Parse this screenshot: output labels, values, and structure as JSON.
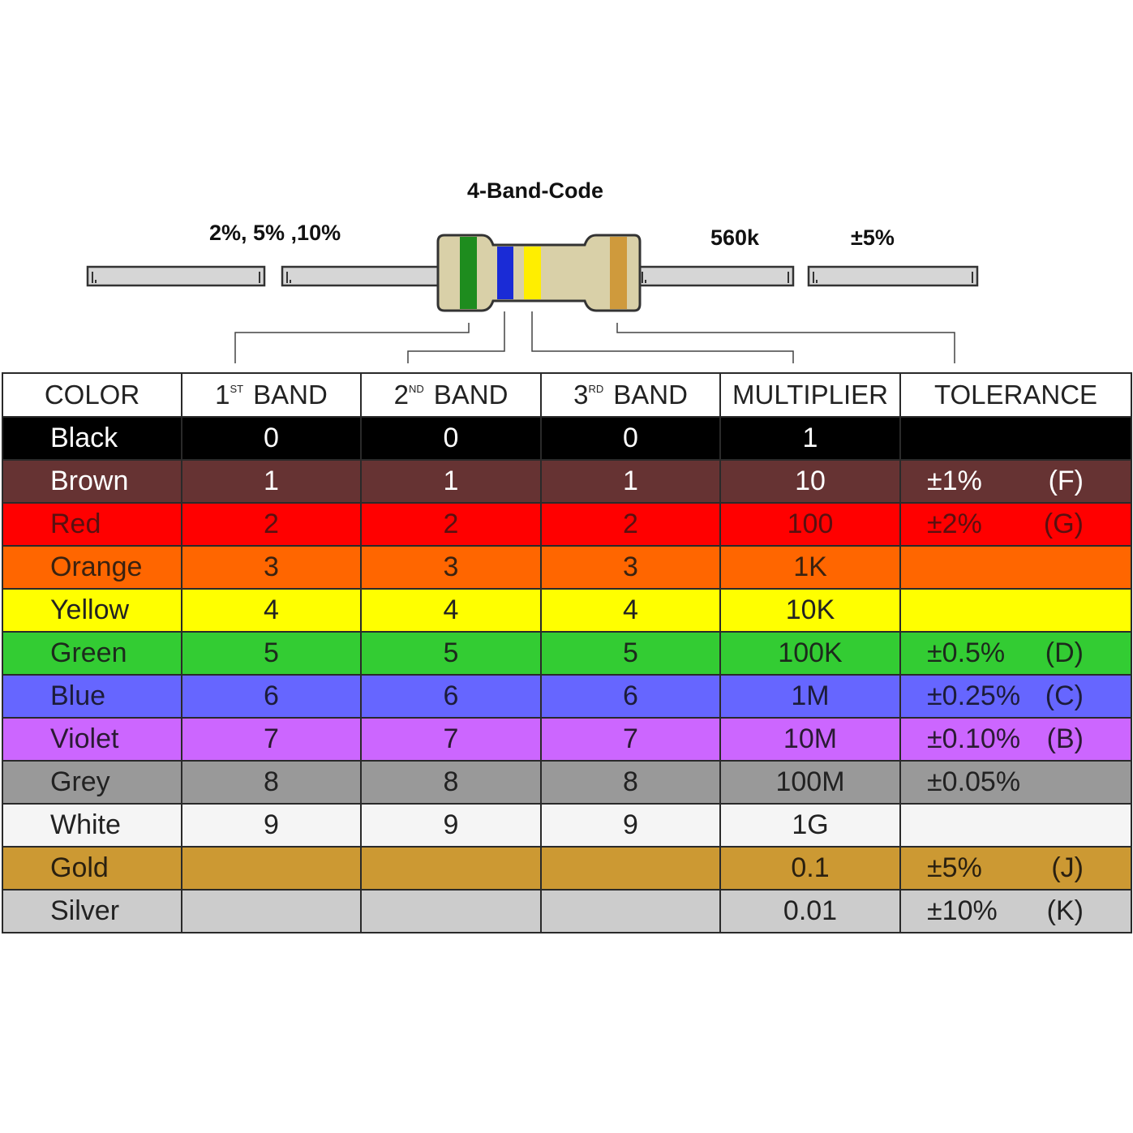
{
  "diagram": {
    "title": "4-Band-Code",
    "tolerance_label": "2%, 5% ,10%",
    "value_label": "560k",
    "tolerance_example": "±5%",
    "resistor_bands": [
      "#1e8c1e",
      "#1a2bd6",
      "#ffee00",
      "#cf9a3c"
    ],
    "resistor_body_color": "#d9d0a8",
    "lead_color": "#d6d6d6"
  },
  "table": {
    "headers": {
      "color": "COLOR",
      "band1_num": "1",
      "band1_sup": "ST",
      "band1_word": "BAND",
      "band2_num": "2",
      "band2_sup": "ND",
      "band2_word": "BAND",
      "band3_num": "3",
      "band3_sup": "RD",
      "band3_word": "BAND",
      "multiplier": "MULTIPLIER",
      "tolerance": "TOLERANCE"
    },
    "rows": [
      {
        "name": "Black",
        "b1": "0",
        "b2": "0",
        "b3": "0",
        "mult": "1",
        "tol": "",
        "code": "",
        "bg": "#000000",
        "fg": "#ffffff"
      },
      {
        "name": "Brown",
        "b1": "1",
        "b2": "1",
        "b3": "1",
        "mult": "10",
        "tol": "±1%",
        "code": "(F)",
        "bg": "#663333",
        "fg": "#ffffff"
      },
      {
        "name": "Red",
        "b1": "2",
        "b2": "2",
        "b3": "2",
        "mult": "100",
        "tol": "±2%",
        "code": "(G)",
        "bg": "#ff0000",
        "fg": "#5a1010"
      },
      {
        "name": "Orange",
        "b1": "3",
        "b2": "3",
        "b3": "3",
        "mult": "1K",
        "tol": "",
        "code": "",
        "bg": "#ff6600",
        "fg": "#3a2210"
      },
      {
        "name": "Yellow",
        "b1": "4",
        "b2": "4",
        "b3": "4",
        "mult": "10K",
        "tol": "",
        "code": "",
        "bg": "#ffff00",
        "fg": "#222222"
      },
      {
        "name": "Green",
        "b1": "5",
        "b2": "5",
        "b3": "5",
        "mult": "100K",
        "tol": "±0.5%",
        "code": "(D)",
        "bg": "#33cc33",
        "fg": "#1c2a1c"
      },
      {
        "name": "Blue",
        "b1": "6",
        "b2": "6",
        "b3": "6",
        "mult": "1M",
        "tol": "±0.25%",
        "code": "(C)",
        "bg": "#6666ff",
        "fg": "#1c1c3a"
      },
      {
        "name": "Violet",
        "b1": "7",
        "b2": "7",
        "b3": "7",
        "mult": "10M",
        "tol": "±0.10%",
        "code": "(B)",
        "bg": "#cc66ff",
        "fg": "#2a1a33"
      },
      {
        "name": "Grey",
        "b1": "8",
        "b2": "8",
        "b3": "8",
        "mult": "100M",
        "tol": "±0.05%",
        "code": "",
        "bg": "#999999",
        "fg": "#222222"
      },
      {
        "name": "White",
        "b1": "9",
        "b2": "9",
        "b3": "9",
        "mult": "1G",
        "tol": "",
        "code": "",
        "bg": "#f5f5f5",
        "fg": "#222222"
      },
      {
        "name": "Gold",
        "b1": "",
        "b2": "",
        "b3": "",
        "mult": "0.1",
        "tol": "±5%",
        "code": "(J)",
        "bg": "#cc9933",
        "fg": "#2a2010"
      },
      {
        "name": "Silver",
        "b1": "",
        "b2": "",
        "b3": "",
        "mult": "0.01",
        "tol": "±10%",
        "code": "(K)",
        "bg": "#cccccc",
        "fg": "#222222"
      }
    ]
  }
}
